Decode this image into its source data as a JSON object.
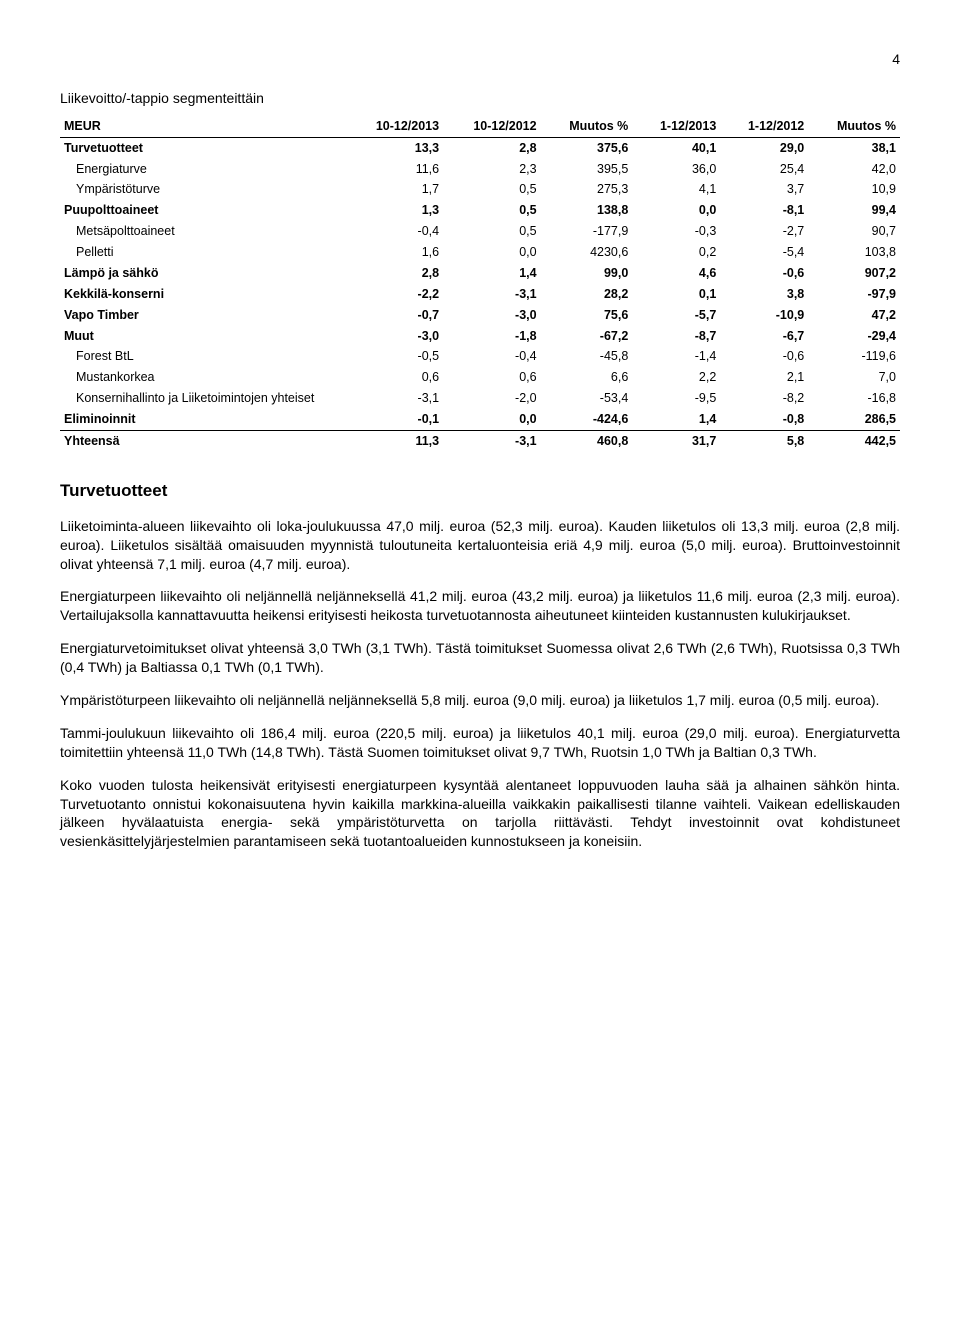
{
  "page_number": "4",
  "table": {
    "title": "Liikevoitto/-tappio segmenteittäin",
    "columns": [
      "MEUR",
      "10-12/2013",
      "10-12/2012",
      "Muutos %",
      "1-12/2013",
      "1-12/2012",
      "Muutos %"
    ],
    "rows": [
      {
        "label": "Turvetuotteet",
        "cells": [
          "13,3",
          "2,8",
          "375,6",
          "40,1",
          "29,0",
          "38,1"
        ],
        "bold": true
      },
      {
        "label": "Energiaturve",
        "cells": [
          "11,6",
          "2,3",
          "395,5",
          "36,0",
          "25,4",
          "42,0"
        ],
        "indent": true
      },
      {
        "label": "Ympäristöturve",
        "cells": [
          "1,7",
          "0,5",
          "275,3",
          "4,1",
          "3,7",
          "10,9"
        ],
        "indent": true
      },
      {
        "label": "Puupolttoaineet",
        "cells": [
          "1,3",
          "0,5",
          "138,8",
          "0,0",
          "-8,1",
          "99,4"
        ],
        "bold": true
      },
      {
        "label": "Metsäpolttoaineet",
        "cells": [
          "-0,4",
          "0,5",
          "-177,9",
          "-0,3",
          "-2,7",
          "90,7"
        ],
        "indent": true
      },
      {
        "label": "Pelletti",
        "cells": [
          "1,6",
          "0,0",
          "4230,6",
          "0,2",
          "-5,4",
          "103,8"
        ],
        "indent": true
      },
      {
        "label": "Lämpö ja sähkö",
        "cells": [
          "2,8",
          "1,4",
          "99,0",
          "4,6",
          "-0,6",
          "907,2"
        ],
        "bold": true
      },
      {
        "label": "Kekkilä-konserni",
        "cells": [
          "-2,2",
          "-3,1",
          "28,2",
          "0,1",
          "3,8",
          "-97,9"
        ],
        "bold": true
      },
      {
        "label": "Vapo Timber",
        "cells": [
          "-0,7",
          "-3,0",
          "75,6",
          "-5,7",
          "-10,9",
          "47,2"
        ],
        "bold": true
      },
      {
        "label": "Muut",
        "cells": [
          "-3,0",
          "-1,8",
          "-67,2",
          "-8,7",
          "-6,7",
          "-29,4"
        ],
        "bold": true
      },
      {
        "label": "Forest BtL",
        "cells": [
          "-0,5",
          "-0,4",
          "-45,8",
          "-1,4",
          "-0,6",
          "-119,6"
        ],
        "indent": true
      },
      {
        "label": "Mustankorkea",
        "cells": [
          "0,6",
          "0,6",
          "6,6",
          "2,2",
          "2,1",
          "7,0"
        ],
        "indent": true
      },
      {
        "label": "Konsernihallinto ja Liiketoimintojen yhteiset",
        "cells": [
          "-3,1",
          "-2,0",
          "-53,4",
          "-9,5",
          "-8,2",
          "-16,8"
        ],
        "indent": true
      },
      {
        "label": "Eliminoinnit",
        "cells": [
          "-0,1",
          "0,0",
          "-424,6",
          "1,4",
          "-0,8",
          "286,5"
        ],
        "bold": true,
        "last": true
      },
      {
        "label": "Yhteensä",
        "cells": [
          "11,3",
          "-3,1",
          "460,8",
          "31,7",
          "5,8",
          "442,5"
        ],
        "bold": true
      }
    ]
  },
  "section_heading": "Turvetuotteet",
  "paragraphs": [
    "Liiketoiminta-alueen liikevaihto oli loka-joulukuussa 47,0 milj. euroa (52,3 milj. euroa). Kauden liiketulos oli 13,3 milj. euroa (2,8 milj. euroa). Liiketulos sisältää omaisuuden myynnistä tuloutuneita kertaluonteisia eriä 4,9 milj. euroa (5,0 milj. euroa). Bruttoinvestoinnit olivat yhteensä 7,1 milj. euroa (4,7 milj. euroa).",
    "Energiaturpeen liikevaihto oli neljännellä neljänneksellä 41,2 milj. euroa (43,2 milj. euroa) ja liiketulos 11,6 milj. euroa (2,3 milj. euroa). Vertailujaksolla kannattavuutta heikensi erityisesti heikosta turvetuotannosta aiheutuneet kiinteiden kustannusten kulukirjaukset.",
    "Energiaturvetoimitukset olivat yhteensä 3,0 TWh (3,1 TWh). Tästä toimitukset Suomessa olivat 2,6 TWh (2,6 TWh), Ruotsissa 0,3 TWh (0,4 TWh) ja Baltiassa 0,1 TWh (0,1 TWh).",
    "Ympäristöturpeen liikevaihto oli neljännellä neljänneksellä 5,8 milj. euroa (9,0 milj. euroa) ja liiketulos 1,7 milj. euroa (0,5 milj. euroa).",
    "Tammi-joulukuun liikevaihto oli 186,4 milj. euroa (220,5 milj. euroa) ja liiketulos 40,1 milj. euroa (29,0 milj. euroa). Energiaturvetta toimitettiin yhteensä 11,0 TWh (14,8 TWh). Tästä Suomen toimitukset olivat 9,7 TWh, Ruotsin 1,0 TWh ja Baltian 0,3 TWh.",
    "Koko vuoden tulosta heikensivät erityisesti energiaturpeen kysyntää alentaneet loppuvuoden lauha sää ja alhainen sähkön hinta. Turvetuotanto onnistui kokonaisuutena hyvin kaikilla markkina-alueilla vaikkakin paikallisesti tilanne vaihteli. Vaikean edelliskauden jälkeen hyvälaatuista energia- sekä ympäristöturvetta on tarjolla riittävästi. Tehdyt investoinnit ovat kohdistuneet vesienkäsittelyjärjestelmien parantamiseen sekä tuotantoalueiden kunnostukseen ja koneisiin."
  ]
}
